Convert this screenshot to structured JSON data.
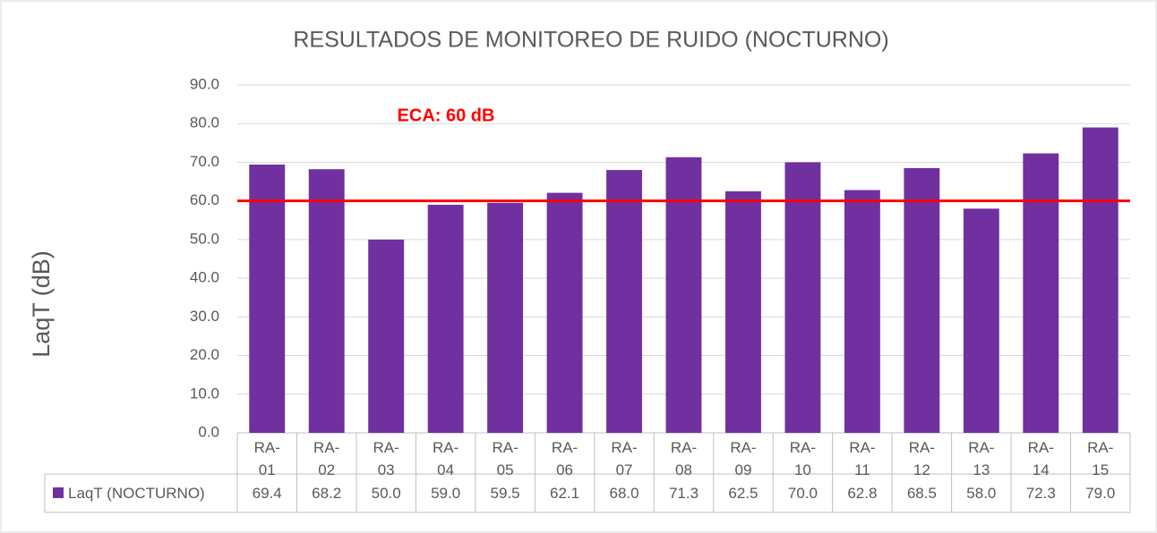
{
  "chart_data": {
    "type": "bar",
    "title": "RESULTADOS DE MONITOREO DE RUIDO (NOCTURNO)",
    "y_label": "LaqT (dB)",
    "categories": [
      "RA-01",
      "RA-02",
      "RA-03",
      "RA-04",
      "RA-05",
      "RA-06",
      "RA-07",
      "RA-08",
      "RA-09",
      "RA-10",
      "RA-11",
      "RA-12",
      "RA-13",
      "RA-14",
      "RA-15"
    ],
    "series": [
      {
        "name": "LaqT (NOCTURNO)",
        "color": "#7030a0",
        "values": [
          69.4,
          68.2,
          50.0,
          59.0,
          59.5,
          62.1,
          68.0,
          71.3,
          62.5,
          70.0,
          62.8,
          68.5,
          58.0,
          72.3,
          79.0
        ],
        "value_labels": [
          "69.4",
          "68.2",
          "50.0",
          "59.0",
          "59.5",
          "62.1",
          "68.0",
          "71.3",
          "62.5",
          "70.0",
          "62.8",
          "68.5",
          "58.0",
          "72.3",
          "79.0"
        ]
      }
    ],
    "ylim": [
      0,
      90
    ],
    "yticks": [
      {
        "value": 0,
        "label": "0.0"
      },
      {
        "value": 10,
        "label": "10.0"
      },
      {
        "value": 20,
        "label": "20.0"
      },
      {
        "value": 30,
        "label": "30.0"
      },
      {
        "value": 40,
        "label": "40.0"
      },
      {
        "value": 50,
        "label": "50.0"
      },
      {
        "value": 60,
        "label": "60.0"
      },
      {
        "value": 70,
        "label": "70.0"
      },
      {
        "value": 80,
        "label": "80.0"
      },
      {
        "value": 90,
        "label": "90.0"
      }
    ],
    "grid": true,
    "reference_line": {
      "value": 60,
      "label": "ECA: 60 dB",
      "color": "#ff0000"
    }
  }
}
